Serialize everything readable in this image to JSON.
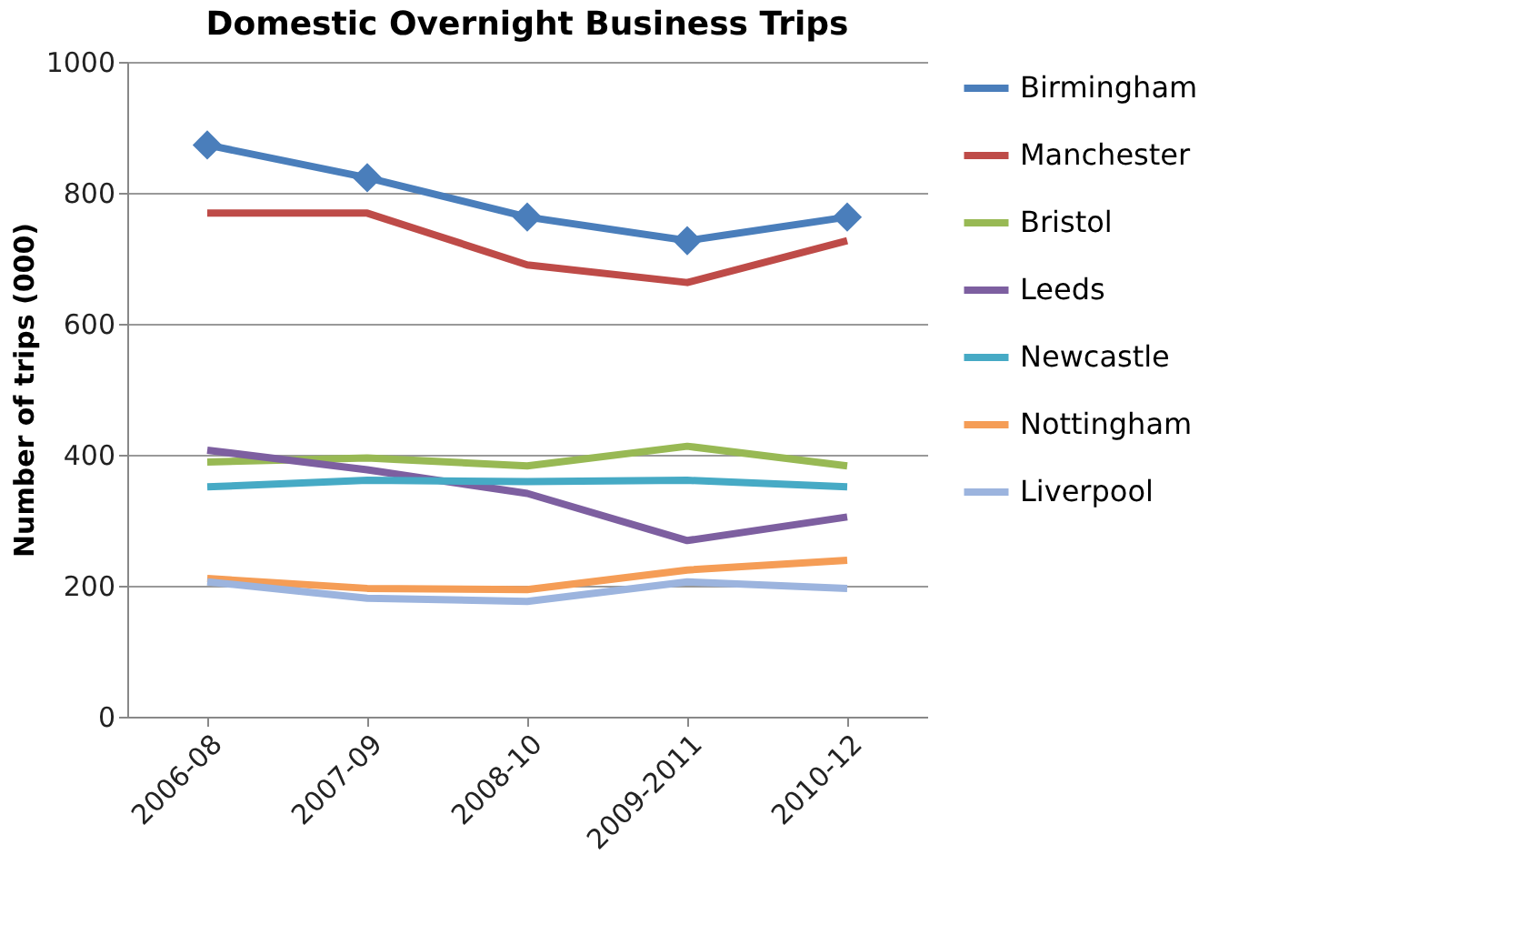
{
  "chart_data": {
    "type": "line",
    "title": "Domestic Overnight Business Trips",
    "ylabel": "Number of trips (000)",
    "categories": [
      "2006-08",
      "2007-09",
      "2008-10",
      "2009-2011",
      "2010-12"
    ],
    "series": [
      {
        "name": "Birmingham",
        "color": "#4a7ebb",
        "marker": "diamond",
        "values": [
          873,
          823,
          763,
          727,
          763
        ]
      },
      {
        "name": "Manchester",
        "color": "#be4b48",
        "values": [
          769,
          769,
          690,
          663,
          727
        ]
      },
      {
        "name": "Bristol",
        "color": "#98b954",
        "values": [
          389,
          395,
          383,
          413,
          383
        ]
      },
      {
        "name": "Leeds",
        "color": "#7d5fa0",
        "values": [
          407,
          377,
          341,
          269,
          305
        ]
      },
      {
        "name": "Newcastle",
        "color": "#46aac5",
        "values": [
          351,
          361,
          359,
          361,
          351
        ]
      },
      {
        "name": "Nottingham",
        "color": "#f59d56",
        "values": [
          211,
          196,
          194,
          224,
          239
        ]
      },
      {
        "name": "Liverpool",
        "color": "#9cb4de",
        "values": [
          206,
          181,
          176,
          206,
          196
        ]
      }
    ],
    "ylim": [
      0,
      1000
    ],
    "yticks": [
      0,
      200,
      400,
      600,
      800,
      1000
    ],
    "grid": "y",
    "legend": "right"
  }
}
